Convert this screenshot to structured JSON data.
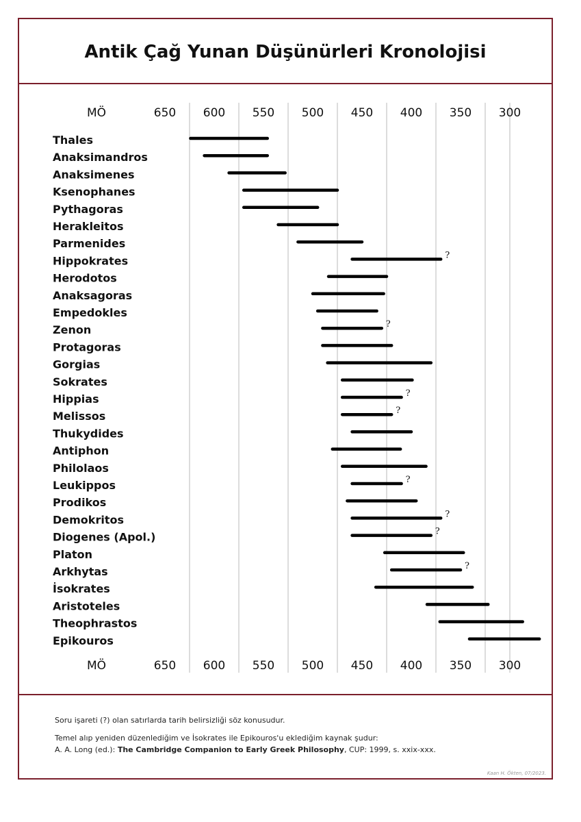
{
  "header": {
    "title": "Antik Çağ Yunan Düşünürleri Kronolojisi"
  },
  "chart_data": {
    "type": "timeline",
    "era_label": "MÖ",
    "x_ticks": [
      650,
      600,
      550,
      500,
      450,
      400,
      350,
      300
    ],
    "x_unit": "BCE year",
    "grid": "vertical",
    "rows": [
      {
        "name": "Thales",
        "start": 624,
        "end": 546,
        "uncertain": false
      },
      {
        "name": "Anaksimandros",
        "start": 610,
        "end": 546,
        "uncertain": false
      },
      {
        "name": "Anaksimenes",
        "start": 585,
        "end": 528,
        "uncertain": false
      },
      {
        "name": "Ksenophanes",
        "start": 570,
        "end": 475,
        "uncertain": false
      },
      {
        "name": "Pythagoras",
        "start": 570,
        "end": 495,
        "uncertain": false
      },
      {
        "name": "Herakleitos",
        "start": 535,
        "end": 475,
        "uncertain": false
      },
      {
        "name": "Parmenides",
        "start": 515,
        "end": 450,
        "uncertain": false
      },
      {
        "name": "Hippokrates",
        "start": 460,
        "end": 370,
        "uncertain": true
      },
      {
        "name": "Herodotos",
        "start": 484,
        "end": 425,
        "uncertain": false
      },
      {
        "name": "Anaksagoras",
        "start": 500,
        "end": 428,
        "uncertain": false
      },
      {
        "name": "Empedokles",
        "start": 495,
        "end": 435,
        "uncertain": false
      },
      {
        "name": "Zenon",
        "start": 490,
        "end": 430,
        "uncertain": true
      },
      {
        "name": "Protagoras",
        "start": 490,
        "end": 420,
        "uncertain": false
      },
      {
        "name": "Gorgias",
        "start": 485,
        "end": 380,
        "uncertain": false
      },
      {
        "name": "Sokrates",
        "start": 470,
        "end": 399,
        "uncertain": false
      },
      {
        "name": "Hippias",
        "start": 470,
        "end": 410,
        "uncertain": true
      },
      {
        "name": "Melissos",
        "start": 470,
        "end": 420,
        "uncertain": true
      },
      {
        "name": "Thukydides",
        "start": 460,
        "end": 400,
        "uncertain": false
      },
      {
        "name": "Antiphon",
        "start": 480,
        "end": 411,
        "uncertain": false
      },
      {
        "name": "Philolaos",
        "start": 470,
        "end": 385,
        "uncertain": false
      },
      {
        "name": "Leukippos",
        "start": 460,
        "end": 410,
        "uncertain": true
      },
      {
        "name": "Prodikos",
        "start": 465,
        "end": 395,
        "uncertain": false
      },
      {
        "name": "Demokritos",
        "start": 460,
        "end": 370,
        "uncertain": true
      },
      {
        "name": "Diogenes (Apol.)",
        "start": 460,
        "end": 380,
        "uncertain": true
      },
      {
        "name": "Platon",
        "start": 427,
        "end": 347,
        "uncertain": false
      },
      {
        "name": "Arkhytas",
        "start": 420,
        "end": 350,
        "uncertain": true
      },
      {
        "name": "İsokrates",
        "start": 436,
        "end": 338,
        "uncertain": false
      },
      {
        "name": "Aristoteles",
        "start": 384,
        "end": 322,
        "uncertain": false
      },
      {
        "name": "Theophrastos",
        "start": 371,
        "end": 287,
        "uncertain": false
      },
      {
        "name": "Epikouros",
        "start": 341,
        "end": 270,
        "uncertain": false
      }
    ],
    "uncertain_marker": "?"
  },
  "footer": {
    "note1": "Soru işareti (?) olan satırlarda tarih belirsizliği söz konusudur.",
    "note2": "Temel alıp yeniden düzenlediğim ve İsokrates ile Epikouros'u eklediğim kaynak şudur:",
    "note3_prefix": "A. A. Long (ed.): ",
    "note3_book": "The Cambridge Companion to Early Greek Philosophy",
    "note3_suffix": ", CUP: 1999, s. xxix-xxx.",
    "credit": "Kaan H. Ökten, 07/2023."
  }
}
